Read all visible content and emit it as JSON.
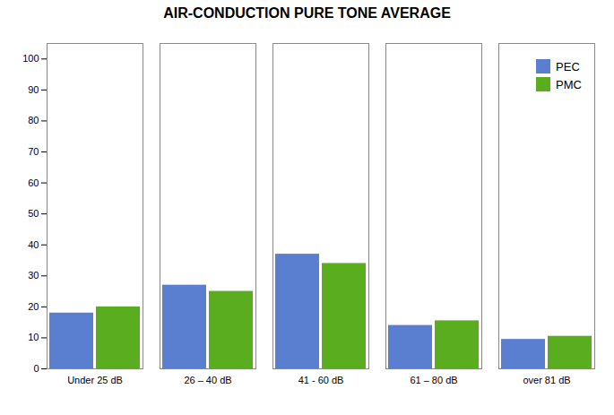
{
  "chart_data": {
    "type": "bar",
    "title": "AIR-CONDUCTION PURE TONE AVERAGE",
    "categories": [
      "Under 25 dB",
      "26 – 40 dB",
      "41 - 60 dB",
      "61 – 80 dB",
      "over 81 dB"
    ],
    "series": [
      {
        "name": "PEC",
        "color": "#5B7FD0",
        "values": [
          18,
          27,
          37,
          14,
          9.5
        ]
      },
      {
        "name": "PMC",
        "color": "#5AAD1E",
        "values": [
          20,
          25,
          34,
          15.5,
          10.5
        ]
      }
    ],
    "ylim": [
      0,
      105
    ],
    "yticks": [
      0,
      10,
      20,
      30,
      40,
      50,
      60,
      70,
      80,
      90,
      100
    ],
    "grid": false,
    "legend": "upper right"
  }
}
